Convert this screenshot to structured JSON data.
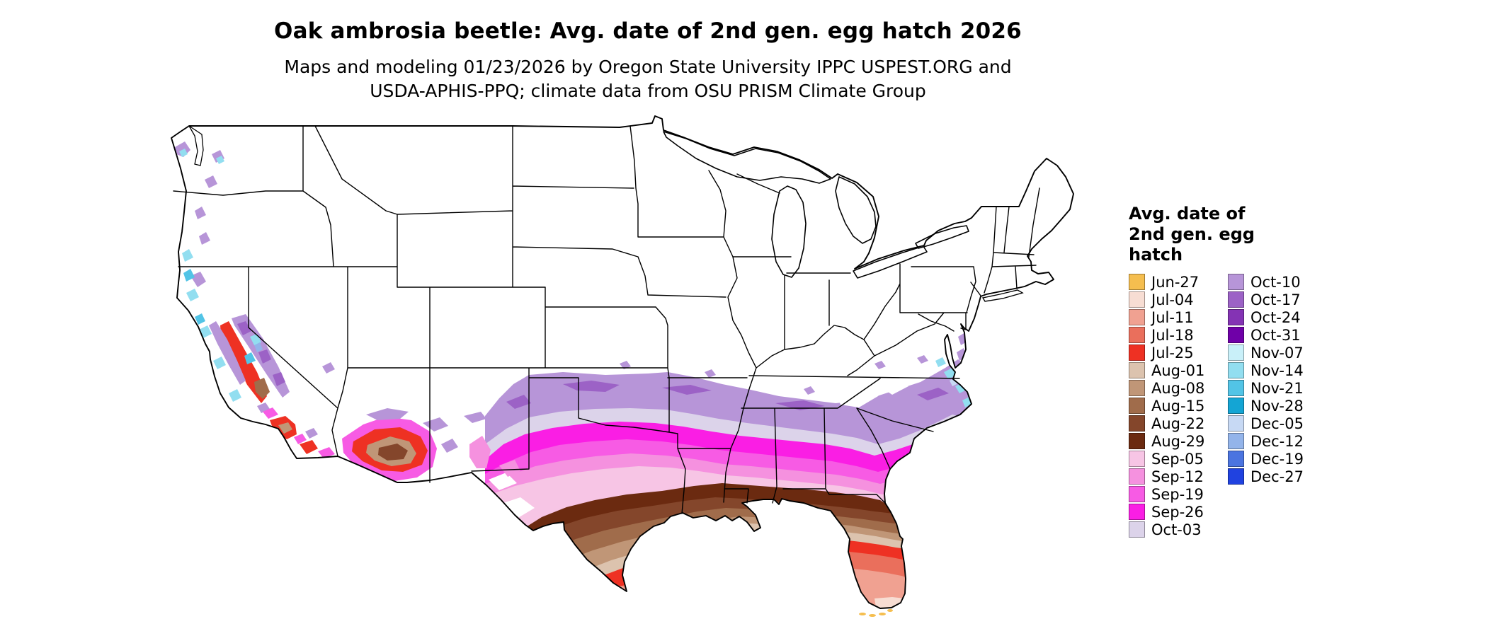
{
  "header": {
    "title": "Oak ambrosia beetle: Avg. date of 2nd gen. egg hatch 2026",
    "subtitle_line1": "Maps and modeling 01/23/2026 by Oregon State University IPPC USPEST.ORG and",
    "subtitle_line2": "USDA-APHIS-PPQ; climate data from OSU PRISM Climate Group"
  },
  "legend": {
    "title_lines": [
      "Avg. date of",
      "2nd gen. egg",
      "hatch"
    ],
    "column1": [
      {
        "label": "Jun-27",
        "color": "#F5BE4F"
      },
      {
        "label": "Jul-04",
        "color": "#F7DDD3"
      },
      {
        "label": "Jul-11",
        "color": "#F0A191"
      },
      {
        "label": "Jul-18",
        "color": "#EA6F5C"
      },
      {
        "label": "Jul-25",
        "color": "#EE3123"
      },
      {
        "label": "Aug-01",
        "color": "#DCC3AE"
      },
      {
        "label": "Aug-08",
        "color": "#C09677"
      },
      {
        "label": "Aug-15",
        "color": "#A06C4B"
      },
      {
        "label": "Aug-22",
        "color": "#84462B"
      },
      {
        "label": "Aug-29",
        "color": "#6B2A10"
      },
      {
        "label": "Sep-05",
        "color": "#F7C5E5"
      },
      {
        "label": "Sep-12",
        "color": "#F591DF"
      },
      {
        "label": "Sep-19",
        "color": "#F75BE4"
      },
      {
        "label": "Sep-26",
        "color": "#FA1EE4"
      },
      {
        "label": "Oct-03",
        "color": "#DCD3EA"
      }
    ],
    "column2": [
      {
        "label": "Oct-10",
        "color": "#B795D8"
      },
      {
        "label": "Oct-17",
        "color": "#9C62C6"
      },
      {
        "label": "Oct-24",
        "color": "#8433B4"
      },
      {
        "label": "Oct-31",
        "color": "#6F00A8"
      },
      {
        "label": "Nov-07",
        "color": "#C9F0F9"
      },
      {
        "label": "Nov-14",
        "color": "#92DEF0"
      },
      {
        "label": "Nov-21",
        "color": "#52C4E6"
      },
      {
        "label": "Nov-28",
        "color": "#14A5D4"
      },
      {
        "label": "Dec-05",
        "color": "#C7D9F4"
      },
      {
        "label": "Dec-12",
        "color": "#93B4EA"
      },
      {
        "label": "Dec-19",
        "color": "#4B74E0"
      },
      {
        "label": "Dec-27",
        "color": "#2042E0"
      }
    ]
  }
}
